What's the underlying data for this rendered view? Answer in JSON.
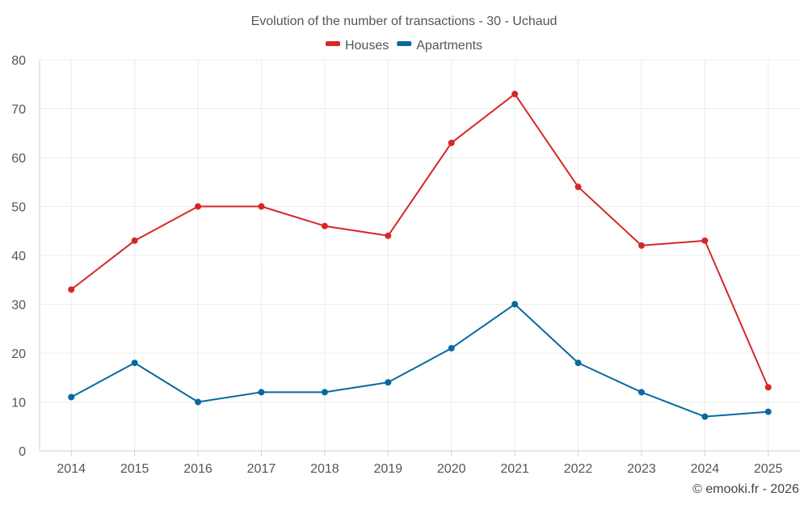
{
  "chart_data": {
    "type": "line",
    "title": "Evolution of the number of transactions - 30 - Uchaud",
    "categories": [
      "2014",
      "2015",
      "2016",
      "2017",
      "2018",
      "2019",
      "2020",
      "2021",
      "2022",
      "2023",
      "2024",
      "2025"
    ],
    "series": [
      {
        "name": "Houses",
        "color": "#d62728",
        "values": [
          33,
          43,
          50,
          50,
          46,
          44,
          63,
          73,
          54,
          42,
          43,
          13
        ]
      },
      {
        "name": "Apartments",
        "color": "#0868a0",
        "values": [
          11,
          18,
          10,
          12,
          12,
          14,
          21,
          30,
          18,
          12,
          7,
          8
        ]
      }
    ],
    "ylim": [
      0,
      80
    ],
    "yticks": [
      0,
      10,
      20,
      30,
      40,
      50,
      60,
      70,
      80
    ],
    "grid": true,
    "legend": "top-center",
    "xlabel": "",
    "ylabel": ""
  },
  "credit": "© emooki.fr - 2026"
}
